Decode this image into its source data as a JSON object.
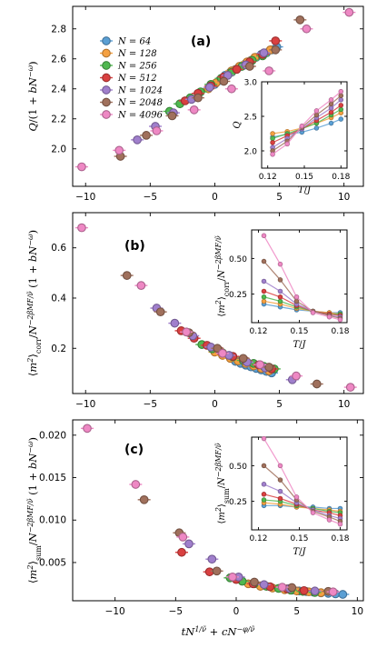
{
  "colors": {
    "N=64": "#5a9fd4",
    "N=128": "#f5a040",
    "N=256": "#4fb84f",
    "N=512": "#d94040",
    "N=1024": "#a07fcc",
    "N=2048": "#a0705c",
    "N=4096": "#ee88c4"
  },
  "legend": [
    "N = 64",
    "N = 128",
    "N = 256",
    "N = 512",
    "N = 1024",
    "N = 2048",
    "N = 4096"
  ],
  "chart_data": [
    {
      "panel": "(a)",
      "type": "scatter",
      "ylabel": "Q/(1 + bN^{−ω})",
      "xlim": [
        -11,
        11.5
      ],
      "ylim": [
        1.75,
        2.95
      ],
      "xticks": [
        "−10",
        "−5",
        "0",
        "5",
        "10"
      ],
      "xtick_values": [
        -10,
        -5,
        0,
        5,
        10
      ],
      "yticks": [
        "2.0",
        "2.2",
        "2.4",
        "2.6",
        "2.8"
      ],
      "ytick_values": [
        2.0,
        2.2,
        2.4,
        2.6,
        2.8
      ],
      "series": [
        {
          "name": "N = 64",
          "x": [
            0.0,
            0.4,
            0.8,
            1.2,
            1.6,
            2.0,
            2.4,
            2.8,
            3.2,
            3.6,
            4.0,
            4.4,
            4.8
          ],
          "y": [
            2.43,
            2.46,
            2.49,
            2.51,
            2.53,
            2.55,
            2.57,
            2.59,
            2.61,
            2.63,
            2.64,
            2.66,
            2.68
          ]
        },
        {
          "name": "N = 128",
          "x": [
            -0.5,
            0.1,
            0.7,
            1.3,
            1.9,
            2.5,
            3.1,
            3.7,
            4.3
          ],
          "y": [
            2.4,
            2.44,
            2.48,
            2.52,
            2.55,
            2.58,
            2.61,
            2.63,
            2.66
          ]
        },
        {
          "name": "N = 256",
          "x": [
            -3.5,
            -2.7,
            -1.9,
            -1.1,
            -0.3,
            0.5,
            1.3,
            2.1,
            2.9,
            3.7
          ],
          "y": [
            2.25,
            2.3,
            2.34,
            2.38,
            2.43,
            2.47,
            2.51,
            2.55,
            2.59,
            2.62
          ]
        },
        {
          "name": "N = 512",
          "x": [
            -2.3,
            -1.3,
            -0.3,
            0.7,
            1.7,
            2.7,
            3.7,
            4.7
          ],
          "y": [
            2.32,
            2.37,
            2.42,
            2.48,
            2.53,
            2.58,
            2.63,
            2.72
          ]
        },
        {
          "name": "N = 1024",
          "x": [
            -6.0,
            -4.6,
            -3.2,
            -1.8,
            -0.4,
            1.0,
            2.4,
            3.8
          ],
          "y": [
            2.06,
            2.15,
            2.24,
            2.33,
            2.41,
            2.49,
            2.56,
            2.64
          ]
        },
        {
          "name": "N = 2048",
          "x": [
            -7.3,
            -5.3,
            -3.3,
            -1.3,
            0.7,
            2.7,
            4.7,
            6.6
          ],
          "y": [
            1.95,
            2.09,
            2.22,
            2.34,
            2.45,
            2.55,
            2.66,
            2.86
          ]
        },
        {
          "name": "N = 4096",
          "x": [
            -10.3,
            -7.4,
            -4.5,
            -1.6,
            1.3,
            4.2,
            7.1,
            10.4
          ],
          "y": [
            1.88,
            1.99,
            2.12,
            2.26,
            2.4,
            2.52,
            2.8,
            2.91
          ]
        }
      ],
      "inset": {
        "type": "line",
        "xlabel": "T/J",
        "ylabel": "Q",
        "xlim": [
          0.115,
          0.185
        ],
        "ylim": [
          1.75,
          3.0
        ],
        "xticks": [
          "0.12",
          "0.15",
          "0.18"
        ],
        "xtick_values": [
          0.12,
          0.15,
          0.18
        ],
        "yticks": [
          "2.0",
          "2.5",
          "3.0"
        ],
        "ytick_values": [
          2.0,
          2.5,
          3.0
        ],
        "x": [
          0.124,
          0.136,
          0.148,
          0.16,
          0.172,
          0.18
        ],
        "series": [
          {
            "name": "N = 64",
            "values": [
              2.2,
              2.24,
              2.27,
              2.33,
              2.4,
              2.46
            ]
          },
          {
            "name": "N = 128",
            "values": [
              2.25,
              2.28,
              2.33,
              2.4,
              2.48,
              2.55
            ]
          },
          {
            "name": "N = 256",
            "values": [
              2.18,
              2.25,
              2.32,
              2.4,
              2.52,
              2.6
            ]
          },
          {
            "name": "N = 512",
            "values": [
              2.12,
              2.22,
              2.32,
              2.44,
              2.56,
              2.66
            ]
          },
          {
            "name": "N = 1024",
            "values": [
              2.05,
              2.18,
              2.32,
              2.48,
              2.62,
              2.74
            ]
          },
          {
            "name": "N = 2048",
            "values": [
              2.0,
              2.14,
              2.34,
              2.52,
              2.68,
              2.8
            ]
          },
          {
            "name": "N = 4096",
            "values": [
              1.95,
              2.1,
              2.36,
              2.58,
              2.74,
              2.86
            ]
          }
        ]
      }
    },
    {
      "panel": "(b)",
      "type": "scatter",
      "ylabel": "⟨m²⟩corr/N^{−2βMF/ν̃}(1 + bN^{−ω})",
      "xlim": [
        -11,
        11.5
      ],
      "ylim": [
        0.02,
        0.74
      ],
      "xticks": [
        "−10",
        "−5",
        "0",
        "5",
        "10"
      ],
      "xtick_values": [
        -10,
        -5,
        0,
        5,
        10
      ],
      "yticks": [
        "0.2",
        "0.4",
        "0.6"
      ],
      "ytick_values": [
        0.2,
        0.4,
        0.6
      ],
      "series": [
        {
          "name": "N = 64",
          "x": [
            1.6,
            2.0,
            2.4,
            2.8,
            3.2,
            3.6,
            4.0,
            4.4
          ],
          "y": [
            0.148,
            0.14,
            0.133,
            0.126,
            0.12,
            0.114,
            0.108,
            0.102
          ]
        },
        {
          "name": "N = 128",
          "x": [
            0.0,
            0.6,
            1.2,
            1.8,
            2.4,
            3.0,
            3.6,
            4.2
          ],
          "y": [
            0.185,
            0.172,
            0.16,
            0.15,
            0.14,
            0.13,
            0.12,
            0.11
          ]
        },
        {
          "name": "N = 256",
          "x": [
            -1.0,
            -0.2,
            0.6,
            1.4,
            2.2,
            3.0,
            3.8,
            4.6
          ],
          "y": [
            0.215,
            0.198,
            0.182,
            0.166,
            0.152,
            0.14,
            0.128,
            0.118
          ]
        },
        {
          "name": "N = 512",
          "x": [
            -2.6,
            -1.6,
            -0.6,
            0.4,
            1.4,
            2.4,
            3.4,
            4.4
          ],
          "y": [
            0.27,
            0.24,
            0.212,
            0.19,
            0.168,
            0.15,
            0.134,
            0.118
          ]
        },
        {
          "name": "N = 1024",
          "x": [
            -4.5,
            -3.1,
            -1.7,
            -0.3,
            1.1,
            2.5,
            3.9,
            6.0
          ],
          "y": [
            0.36,
            0.3,
            0.25,
            0.205,
            0.172,
            0.145,
            0.122,
            0.075
          ]
        },
        {
          "name": "N = 2048",
          "x": [
            -6.8,
            -4.2,
            -2.0,
            0.2,
            2.2,
            4.2,
            7.9
          ],
          "y": [
            0.49,
            0.345,
            0.262,
            0.2,
            0.16,
            0.125,
            0.058
          ]
        },
        {
          "name": "N = 4096",
          "x": [
            -10.3,
            -5.7,
            -2.2,
            0.6,
            3.5,
            6.3,
            10.5
          ],
          "y": [
            0.68,
            0.45,
            0.265,
            0.18,
            0.135,
            0.09,
            0.045
          ]
        }
      ],
      "inset": {
        "type": "line",
        "xlabel": "T/J",
        "ylabel": "⟨m²⟩corr/N^{−2βMF/ν̃}",
        "xlim": [
          0.115,
          0.185
        ],
        "ylim": [
          0.05,
          0.7
        ],
        "xticks": [
          "0.12",
          "0.15",
          "0.18"
        ],
        "xtick_values": [
          0.12,
          0.15,
          0.18
        ],
        "yticks": [
          "0.25",
          "0.50"
        ],
        "ytick_values": [
          0.25,
          0.5
        ],
        "x": [
          0.124,
          0.136,
          0.148,
          0.16,
          0.172,
          0.18
        ],
        "series": [
          {
            "name": "N = 64",
            "values": [
              0.18,
              0.16,
              0.14,
              0.13,
              0.12,
              0.12
            ]
          },
          {
            "name": "N = 128",
            "values": [
              0.2,
              0.18,
              0.15,
              0.13,
              0.12,
              0.11
            ]
          },
          {
            "name": "N = 256",
            "values": [
              0.23,
              0.2,
              0.16,
              0.13,
              0.11,
              0.11
            ]
          },
          {
            "name": "N = 512",
            "values": [
              0.27,
              0.23,
              0.17,
              0.13,
              0.11,
              0.1
            ]
          },
          {
            "name": "N = 1024",
            "values": [
              0.34,
              0.27,
              0.18,
              0.13,
              0.1,
              0.09
            ]
          },
          {
            "name": "N = 2048",
            "values": [
              0.48,
              0.35,
              0.2,
              0.13,
              0.1,
              0.08
            ]
          },
          {
            "name": "N = 4096",
            "values": [
              0.66,
              0.46,
              0.23,
              0.12,
              0.09,
              0.07
            ]
          }
        ]
      }
    },
    {
      "panel": "(c)",
      "type": "scatter",
      "xlabel": "tN^{1/ν̃} + cN^{−φ/ν̃}",
      "ylabel": "⟨m²⟩sum/N^{−2βMF/ν̃}(1 + bN^{−ω})",
      "xlim": [
        -13.5,
        10.5
      ],
      "ylim": [
        0.0005,
        0.0218
      ],
      "xticks": [
        "−10",
        "−5",
        "0",
        "5",
        "10"
      ],
      "xtick_values": [
        -10,
        -5,
        0,
        5,
        10
      ],
      "yticks": [
        "0.005",
        "0.010",
        "0.015",
        "0.020"
      ],
      "ytick_values": [
        0.005,
        0.01,
        0.015,
        0.02
      ],
      "series": [
        {
          "name": "N = 64",
          "x": [
            4.6,
            5.2,
            5.8,
            6.4,
            7.0,
            7.6,
            8.2,
            8.8
          ],
          "y": [
            0.00175,
            0.00165,
            0.00158,
            0.0015,
            0.00143,
            0.00137,
            0.00131,
            0.00125
          ]
        },
        {
          "name": "N = 128",
          "x": [
            1.0,
            2.0,
            3.0,
            4.0,
            5.0,
            6.0,
            7.0
          ],
          "y": [
            0.0025,
            0.0022,
            0.002,
            0.0018,
            0.00165,
            0.00155,
            0.00145
          ]
        },
        {
          "name": "N = 256",
          "x": [
            -0.5,
            0.5,
            1.5,
            2.5,
            3.5,
            4.5,
            5.5,
            6.5
          ],
          "y": [
            0.0032,
            0.0028,
            0.0025,
            0.0022,
            0.00195,
            0.00175,
            0.0016,
            0.00148
          ]
        },
        {
          "name": "N = 512",
          "x": [
            -4.5,
            -2.2,
            0.0,
            1.4,
            2.8,
            4.2,
            5.6
          ],
          "y": [
            0.0062,
            0.0039,
            0.003,
            0.0025,
            0.00215,
            0.0019,
            0.0017
          ]
        },
        {
          "name": "N = 1024",
          "x": [
            -3.9,
            -2.0,
            0.2,
            2.3,
            4.4,
            6.5
          ],
          "y": [
            0.0072,
            0.0054,
            0.0033,
            0.0024,
            0.00195,
            0.00165
          ]
        },
        {
          "name": "N = 2048",
          "x": [
            -7.6,
            -4.7,
            -1.6,
            1.5,
            4.6,
            7.6
          ],
          "y": [
            0.0124,
            0.0085,
            0.004,
            0.0027,
            0.00205,
            0.0016
          ]
        },
        {
          "name": "N = 4096",
          "x": [
            -12.3,
            -8.3,
            -4.4,
            -0.3,
            3.8,
            8.0
          ],
          "y": [
            0.0208,
            0.0142,
            0.008,
            0.0033,
            0.0021,
            0.00155
          ]
        }
      ],
      "inset": {
        "type": "line",
        "xlabel": "T/J",
        "ylabel": "⟨m²⟩sum/N^{−2βMF/ν̃}",
        "xlim": [
          0.115,
          0.185
        ],
        "ylim": [
          0.05,
          0.7
        ],
        "xticks": [
          "0.12",
          "0.15",
          "0.18"
        ],
        "xtick_values": [
          0.12,
          0.15,
          0.18
        ],
        "yticks": [
          "0.25",
          "0.50"
        ],
        "ytick_values": [
          0.25,
          0.5
        ],
        "x": [
          0.124,
          0.136,
          0.148,
          0.16,
          0.172,
          0.18
        ],
        "series": [
          {
            "name": "N = 64",
            "values": [
              0.22,
              0.22,
              0.21,
              0.21,
              0.2,
              0.2
            ]
          },
          {
            "name": "N = 128",
            "values": [
              0.24,
              0.23,
              0.21,
              0.2,
              0.19,
              0.18
            ]
          },
          {
            "name": "N = 256",
            "values": [
              0.26,
              0.25,
              0.22,
              0.2,
              0.18,
              0.17
            ]
          },
          {
            "name": "N = 512",
            "values": [
              0.3,
              0.27,
              0.23,
              0.19,
              0.17,
              0.15
            ]
          },
          {
            "name": "N = 1024",
            "values": [
              0.37,
              0.32,
              0.24,
              0.19,
              0.15,
              0.13
            ]
          },
          {
            "name": "N = 2048",
            "values": [
              0.5,
              0.4,
              0.26,
              0.18,
              0.14,
              0.11
            ]
          },
          {
            "name": "N = 4096",
            "values": [
              0.69,
              0.5,
              0.28,
              0.17,
              0.12,
              0.09
            ]
          }
        ]
      }
    }
  ]
}
